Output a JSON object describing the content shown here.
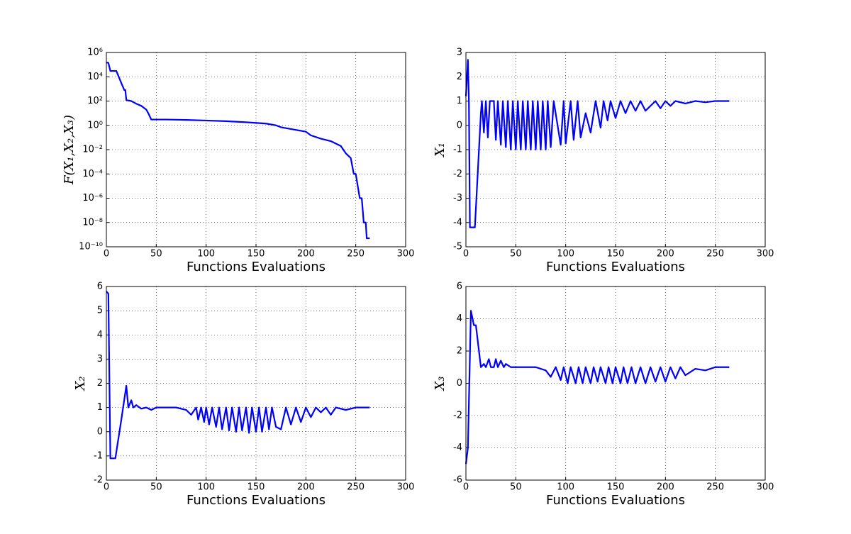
{
  "chart_data": [
    {
      "type": "line",
      "xlabel": "Functions Evaluations",
      "ylabel": "F(X₁,X₂,X₃)",
      "yscale": "log",
      "grid": true,
      "color": "#0000ff",
      "xlim": [
        0,
        300
      ],
      "xticks": [
        0,
        50,
        100,
        150,
        200,
        250,
        300
      ],
      "ylim": [
        1e-10,
        1000000.0
      ],
      "yticks": [
        {
          "value": 1e-10,
          "label": "10⁻¹⁰"
        },
        {
          "value": 1e-08,
          "label": "10⁻⁸"
        },
        {
          "value": 1e-06,
          "label": "10⁻⁶"
        },
        {
          "value": 0.0001,
          "label": "10⁻⁴"
        },
        {
          "value": 0.01,
          "label": "10⁻²"
        },
        {
          "value": 1,
          "label": "10⁰"
        },
        {
          "value": 100,
          "label": "10²"
        },
        {
          "value": 10000,
          "label": "10⁴"
        },
        {
          "value": 1000000,
          "label": "10⁶"
        }
      ],
      "x": [
        0,
        2,
        4,
        10,
        15,
        18,
        19,
        20,
        25,
        30,
        35,
        40,
        42,
        45,
        60,
        80,
        100,
        120,
        140,
        160,
        170,
        175,
        185,
        200,
        205,
        215,
        225,
        235,
        240,
        245,
        248,
        250,
        252,
        254,
        256,
        257,
        258,
        260,
        261,
        264
      ],
      "values": [
        150000,
        140000,
        30000,
        30000,
        3000,
        800,
        800,
        120,
        100,
        60,
        40,
        20,
        10,
        3,
        3,
        2.8,
        2.5,
        2.2,
        1.8,
        1.4,
        1,
        0.7,
        0.5,
        0.3,
        0.15,
        0.08,
        0.05,
        0.02,
        0.005,
        0.002,
        0.0001,
        0.0001,
        1e-05,
        1e-06,
        1e-06,
        1e-07,
        1e-08,
        1e-08,
        5e-10,
        5e-10
      ]
    },
    {
      "type": "line",
      "xlabel": "Functions Evaluations",
      "ylabel": "X₁",
      "grid": true,
      "color": "#0000ff",
      "xlim": [
        0,
        300
      ],
      "xticks": [
        0,
        50,
        100,
        150,
        200,
        250,
        300
      ],
      "ylim": [
        -5,
        3
      ],
      "yticks": [
        -5,
        -4,
        -3,
        -2,
        -1,
        0,
        1,
        2,
        3
      ],
      "x": [
        0,
        2,
        3,
        4,
        9,
        15,
        16,
        18,
        20,
        22,
        24,
        28,
        30,
        32,
        35,
        37,
        40,
        42,
        45,
        47,
        50,
        52,
        55,
        57,
        60,
        62,
        65,
        67,
        70,
        72,
        75,
        77,
        80,
        82,
        85,
        88,
        95,
        98,
        100,
        105,
        108,
        112,
        115,
        120,
        125,
        130,
        135,
        138,
        142,
        145,
        150,
        155,
        160,
        165,
        170,
        175,
        180,
        190,
        195,
        200,
        205,
        210,
        220,
        230,
        240,
        250,
        264
      ],
      "values": [
        1.2,
        2.7,
        1,
        -4.2,
        -4.2,
        0.5,
        1,
        -0.3,
        1,
        -0.5,
        1,
        1,
        -0.6,
        1,
        -0.8,
        1,
        -0.9,
        1,
        -1,
        1,
        -1,
        1,
        -1,
        1,
        -1,
        1,
        -1,
        1,
        -1,
        1,
        -1,
        1,
        -1,
        1,
        -0.9,
        1,
        -0.8,
        1,
        -0.75,
        1,
        -0.6,
        1,
        -0.5,
        0.5,
        -0.3,
        1,
        -0.1,
        1,
        0.2,
        1,
        0.3,
        1,
        0.5,
        1,
        0.6,
        1,
        0.6,
        1,
        0.7,
        1,
        0.8,
        1,
        0.9,
        1,
        0.95,
        1,
        1
      ]
    },
    {
      "type": "line",
      "xlabel": "Functions Evaluations",
      "ylabel": "X₂",
      "grid": true,
      "color": "#0000ff",
      "xlim": [
        0,
        300
      ],
      "xticks": [
        0,
        50,
        100,
        150,
        200,
        250,
        300
      ],
      "ylim": [
        -2,
        6
      ],
      "yticks": [
        -2,
        -1,
        0,
        1,
        2,
        3,
        4,
        5,
        6
      ],
      "x": [
        0,
        2,
        4,
        9,
        15,
        20,
        22,
        25,
        27,
        30,
        35,
        40,
        45,
        50,
        70,
        80,
        85,
        90,
        92,
        95,
        98,
        100,
        103,
        106,
        110,
        113,
        116,
        120,
        123,
        126,
        130,
        133,
        136,
        140,
        143,
        146,
        150,
        153,
        156,
        160,
        163,
        166,
        170,
        175,
        180,
        185,
        190,
        195,
        200,
        205,
        210,
        215,
        220,
        225,
        230,
        240,
        250,
        264
      ],
      "values": [
        5.8,
        5.7,
        -1.1,
        -1.1,
        0.5,
        1.9,
        1,
        1.3,
        1,
        1.1,
        0.95,
        1,
        0.9,
        1,
        1,
        0.9,
        0.7,
        1,
        0.5,
        1,
        0.4,
        1,
        0.3,
        1,
        0.2,
        1,
        0.1,
        1,
        0.05,
        1,
        0,
        1,
        0.05,
        1,
        -0.05,
        1,
        0,
        1,
        0,
        1,
        0.1,
        1,
        0.2,
        0.1,
        1,
        0.3,
        1,
        0.4,
        1,
        0.6,
        1,
        0.8,
        1,
        0.7,
        1,
        0.9,
        1,
        1
      ]
    },
    {
      "type": "line",
      "xlabel": "Functions Evaluations",
      "ylabel": "X₃",
      "grid": true,
      "color": "#0000ff",
      "xlim": [
        0,
        300
      ],
      "xticks": [
        0,
        50,
        100,
        150,
        200,
        250,
        300
      ],
      "ylim": [
        -6,
        6
      ],
      "yticks": [
        -6,
        -4,
        -2,
        0,
        2,
        4,
        6
      ],
      "x": [
        0,
        2,
        5,
        8,
        10,
        15,
        18,
        20,
        23,
        25,
        28,
        30,
        32,
        35,
        38,
        40,
        45,
        70,
        80,
        85,
        90,
        95,
        98,
        102,
        105,
        110,
        113,
        117,
        120,
        125,
        128,
        132,
        135,
        140,
        143,
        147,
        150,
        155,
        158,
        162,
        166,
        170,
        175,
        180,
        185,
        190,
        195,
        200,
        205,
        210,
        215,
        220,
        230,
        240,
        250,
        264
      ],
      "values": [
        -5,
        -4,
        4.5,
        3.6,
        3.6,
        1,
        1.2,
        1,
        1.5,
        1,
        1,
        1.5,
        1,
        1.4,
        1,
        1.2,
        1,
        1,
        0.8,
        0.4,
        1,
        0.2,
        1,
        0,
        1,
        0,
        1,
        0,
        1,
        0,
        1,
        0.1,
        1,
        0,
        1,
        0,
        1,
        0,
        1,
        0,
        1,
        0,
        1,
        0,
        1,
        0.1,
        1,
        0.1,
        1,
        0.3,
        1,
        0.5,
        0.9,
        0.8,
        1,
        1
      ]
    }
  ]
}
